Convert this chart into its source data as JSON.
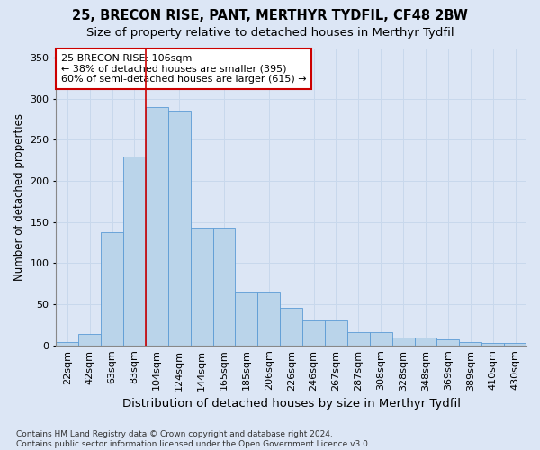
{
  "title": "25, BRECON RISE, PANT, MERTHYR TYDFIL, CF48 2BW",
  "subtitle": "Size of property relative to detached houses in Merthyr Tydfil",
  "xlabel": "Distribution of detached houses by size in Merthyr Tydfil",
  "ylabel": "Number of detached properties",
  "categories": [
    "22sqm",
    "42sqm",
    "63sqm",
    "83sqm",
    "104sqm",
    "124sqm",
    "144sqm",
    "165sqm",
    "185sqm",
    "206sqm",
    "226sqm",
    "246sqm",
    "267sqm",
    "287sqm",
    "308sqm",
    "328sqm",
    "348sqm",
    "369sqm",
    "389sqm",
    "410sqm",
    "430sqm"
  ],
  "values": [
    4,
    14,
    138,
    230,
    290,
    285,
    143,
    143,
    65,
    65,
    46,
    30,
    30,
    16,
    16,
    10,
    10,
    7,
    4,
    3,
    3
  ],
  "bar_color": "#bad4ea",
  "bar_edge_color": "#5b9bd5",
  "grid_color": "#c8d8ec",
  "background_color": "#dce6f5",
  "vline_color": "#cc0000",
  "vline_index": 4,
  "annotation_text": "25 BRECON RISE: 106sqm\n← 38% of detached houses are smaller (395)\n60% of semi-detached houses are larger (615) →",
  "annotation_box_color": "#cc0000",
  "ylim": [
    0,
    360
  ],
  "yticks": [
    0,
    50,
    100,
    150,
    200,
    250,
    300,
    350
  ],
  "footer": "Contains HM Land Registry data © Crown copyright and database right 2024.\nContains public sector information licensed under the Open Government Licence v3.0.",
  "title_fontsize": 10.5,
  "subtitle_fontsize": 9.5,
  "xlabel_fontsize": 9.5,
  "ylabel_fontsize": 8.5,
  "tick_fontsize": 8,
  "annotation_fontsize": 8,
  "footer_fontsize": 6.5
}
